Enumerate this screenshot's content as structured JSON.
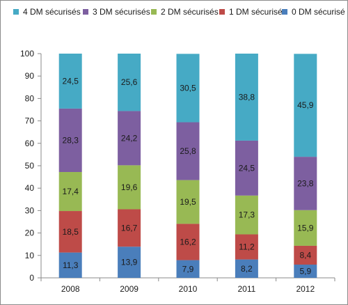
{
  "chart_data": {
    "type": "bar",
    "stacked": true,
    "categories": [
      "2008",
      "2009",
      "2010",
      "2011",
      "2012"
    ],
    "series": [
      {
        "name": "0 DM sécurisé",
        "color": "#4a7ebb",
        "values": [
          11.3,
          13.9,
          7.9,
          8.2,
          5.9
        ],
        "labels": [
          "11,3",
          "13,9",
          "7,9",
          "8,2",
          "5,9"
        ]
      },
      {
        "name": "1 DM sécurisé",
        "color": "#be4b48",
        "values": [
          18.5,
          16.7,
          16.2,
          11.2,
          8.4
        ],
        "labels": [
          "18,5",
          "16,7",
          "16,2",
          "11,2",
          "8,4"
        ]
      },
      {
        "name": "2 DM sécurisés",
        "color": "#98b954",
        "values": [
          17.4,
          19.6,
          19.5,
          17.3,
          15.9
        ],
        "labels": [
          "17,4",
          "19,6",
          "19,5",
          "17,3",
          "15,9"
        ]
      },
      {
        "name": "3 DM sécurisés",
        "color": "#7d5fa0",
        "values": [
          28.3,
          24.2,
          25.8,
          24.5,
          23.8
        ],
        "labels": [
          "28,3",
          "24,2",
          "25,8",
          "24,5",
          "23,8"
        ]
      },
      {
        "name": "4 DM sécurisés",
        "color": "#46aac5",
        "values": [
          24.5,
          25.6,
          30.5,
          38.8,
          45.9
        ],
        "labels": [
          "24,5",
          "25,6",
          "30,5",
          "38,8",
          "45,9"
        ]
      }
    ],
    "legend_order": [
      "4 DM sécurisés",
      "3 DM sécurisés",
      "2 DM sécurisés",
      "1 DM sécurisé",
      "0 DM sécurisé"
    ],
    "legend_position": "top",
    "ylim": [
      0,
      100
    ],
    "yticks": [
      0,
      10,
      20,
      30,
      40,
      50,
      60,
      70,
      80,
      90,
      100
    ],
    "grid": false,
    "title": "",
    "xlabel": "",
    "ylabel": ""
  }
}
